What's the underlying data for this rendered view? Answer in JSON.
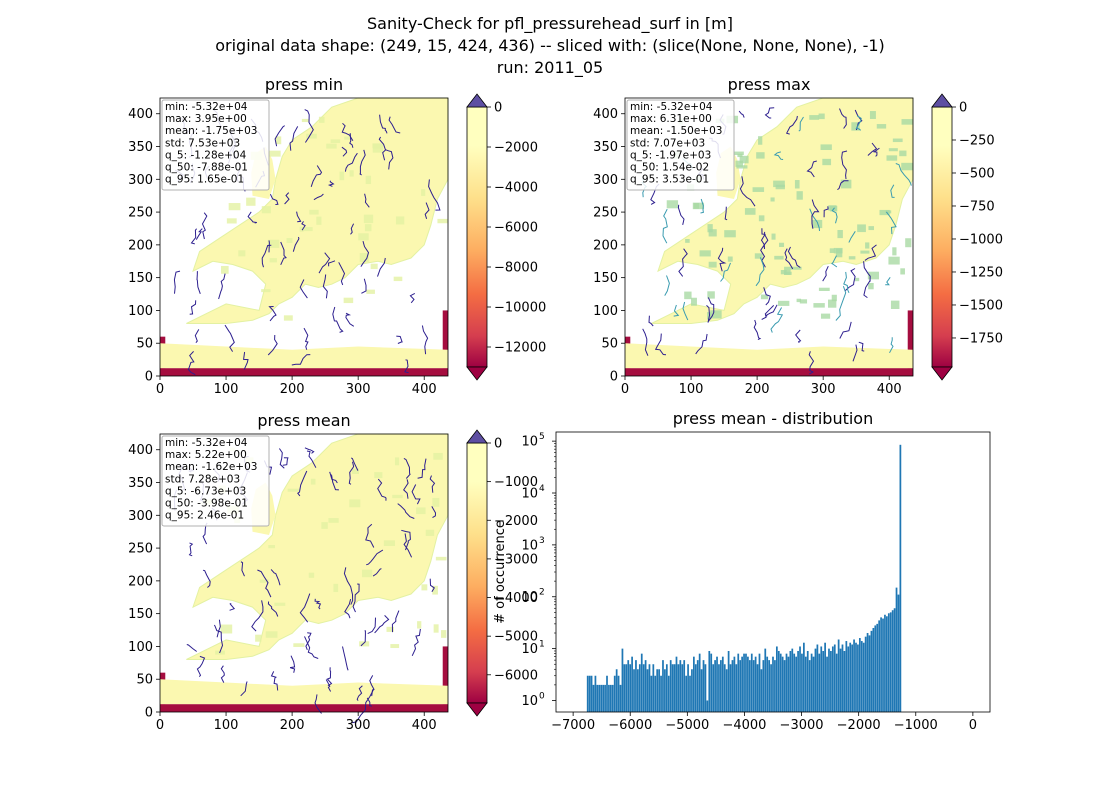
{
  "figure": {
    "title_lines": [
      "Sanity-Check for pfl_pressurehead_surf in [m]",
      "original data shape: (249, 15, 424, 436) -- sliced with: (slice(None, None, None), -1)",
      "run: 2011_05"
    ]
  },
  "colors": {
    "land_low": "#fbf8b0",
    "land_mid": "#e3f1a2",
    "land_green": "#a9d9a4",
    "river": "#2d1f8f",
    "river_teal": "#3a9bb0",
    "edge_red": "#a50d3f",
    "cbar_over": "#5e4fa2",
    "cbar_under": "#9e0142",
    "hist_bar": "#1f77b4",
    "stats_border": "#b0b0b0"
  },
  "chart_data": [
    {
      "type": "heatmap",
      "title": "press min",
      "xticks": [
        0,
        100,
        200,
        300,
        400
      ],
      "yticks": [
        0,
        50,
        100,
        150,
        200,
        250,
        300,
        350,
        400
      ],
      "xlim": [
        0,
        436
      ],
      "ylim": [
        0,
        424
      ],
      "colorbar": {
        "vmin": -13000,
        "vmax": 0,
        "ticks": [
          0,
          -2000,
          -4000,
          -6000,
          -8000,
          -10000,
          -12000
        ],
        "tick_labels": [
          "0",
          "−2000",
          "−4000",
          "−6000",
          "−8000",
          "−10000",
          "−12000"
        ],
        "extend": "both"
      },
      "stats": [
        "min: -5.32e+04",
        "max: 3.95e+00",
        "mean: -1.75e+03",
        "std: 7.53e+03",
        "q_5: -1.28e+04",
        "q_50: -7.88e-01",
        "q_95: 1.65e-01"
      ]
    },
    {
      "type": "heatmap",
      "title": "press max",
      "xticks": [
        0,
        100,
        200,
        300,
        400
      ],
      "yticks": [
        0,
        50,
        100,
        150,
        200,
        250,
        300,
        350,
        400
      ],
      "xlim": [
        0,
        436
      ],
      "ylim": [
        0,
        424
      ],
      "colorbar": {
        "vmin": -1970,
        "vmax": 0,
        "ticks": [
          0,
          -250,
          -500,
          -750,
          -1000,
          -1250,
          -1500,
          -1750
        ],
        "tick_labels": [
          "0",
          "−250",
          "−500",
          "−750",
          "−1000",
          "−1250",
          "−1500",
          "−1750"
        ],
        "extend": "both"
      },
      "stats": [
        "min: -5.32e+04",
        "max: 6.31e+00",
        "mean: -1.50e+03",
        "std: 7.07e+03",
        "q_5: -1.97e+03",
        "q_50: 1.54e-02",
        "q_95: 3.53e-01"
      ]
    },
    {
      "type": "heatmap",
      "title": "press mean",
      "xticks": [
        0,
        100,
        200,
        300,
        400
      ],
      "yticks": [
        0,
        50,
        100,
        150,
        200,
        250,
        300,
        350,
        400
      ],
      "xlim": [
        0,
        436
      ],
      "ylim": [
        0,
        424
      ],
      "colorbar": {
        "vmin": -6730,
        "vmax": 0,
        "ticks": [
          0,
          -1000,
          -2000,
          -3000,
          -4000,
          -5000,
          -6000
        ],
        "tick_labels": [
          "0",
          "−1000",
          "−2000",
          "−3000",
          "−4000",
          "−5000",
          "−6000"
        ],
        "extend": "both"
      },
      "stats": [
        "min: -5.32e+04",
        "max: 5.22e+00",
        "mean: -1.62e+03",
        "std: 7.28e+03",
        "q_5: -6.73e+03",
        "q_50: -3.98e-01",
        "q_95: 2.46e-01"
      ]
    },
    {
      "type": "bar",
      "title": "press mean - distribution",
      "ylabel": "# of occurrence",
      "yscale": "log",
      "xlim": [
        -7300,
        300
      ],
      "ylim": [
        0.6,
        150000
      ],
      "xticks": [
        -7000,
        -6000,
        -5000,
        -4000,
        -3000,
        -2000,
        -1000,
        0
      ],
      "xtick_labels": [
        "−7000",
        "−6000",
        "−5000",
        "−4000",
        "−3000",
        "−2000",
        "−1000",
        "0"
      ],
      "yticks": [
        1,
        10,
        100,
        1000,
        10000,
        100000
      ],
      "ytick_labels": [
        "10",
        "10",
        "10",
        "10",
        "10",
        "10"
      ],
      "ytick_exponents": [
        "0",
        "1",
        "2",
        "3",
        "4",
        "5"
      ],
      "bin_start": -6760,
      "bin_width": 33.8,
      "counts": [
        3,
        3,
        3,
        2,
        3,
        2,
        2,
        2,
        2,
        2,
        3,
        2,
        2,
        2,
        3,
        4,
        3,
        2,
        10,
        5,
        5,
        6,
        5,
        7,
        4,
        6,
        4,
        5,
        8,
        5,
        6,
        4,
        5,
        3,
        5,
        3,
        4,
        4,
        3,
        6,
        4,
        5,
        3,
        6,
        5,
        5,
        7,
        5,
        6,
        5,
        6,
        3,
        5,
        3,
        4,
        7,
        5,
        6,
        8,
        4,
        6,
        5,
        1,
        9,
        8,
        5,
        6,
        7,
        5,
        6,
        7,
        5,
        4,
        9,
        5,
        6,
        7,
        5,
        8,
        6,
        7,
        8,
        8,
        7,
        6,
        8,
        6,
        7,
        5,
        8,
        4,
        6,
        10,
        7,
        6,
        5,
        7,
        6,
        11,
        9,
        8,
        7,
        6,
        8,
        7,
        9,
        10,
        8,
        7,
        9,
        11,
        8,
        13,
        7,
        9,
        6,
        8,
        7,
        10,
        12,
        8,
        11,
        9,
        13,
        7,
        10,
        9,
        11,
        12,
        8,
        15,
        10,
        12,
        9,
        14,
        11,
        13,
        12,
        15,
        13,
        12,
        16,
        14,
        13,
        17,
        20,
        18,
        22,
        25,
        28,
        30,
        35,
        40,
        38,
        45,
        42,
        48,
        50,
        55,
        60,
        150,
        110,
        85000
      ],
      "peak_value": 85000
    }
  ]
}
